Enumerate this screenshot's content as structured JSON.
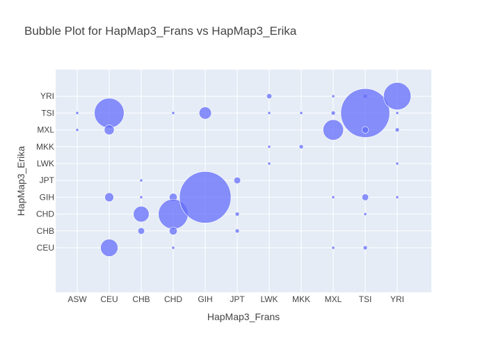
{
  "chart_data": {
    "type": "scatter",
    "title": "Bubble Plot for HapMap3_Frans vs HapMap3_Erika",
    "xlabel": "HapMap3_Frans",
    "ylabel": "HapMap3_Erika",
    "x_categories": [
      "ASW",
      "CEU",
      "CHB",
      "CHD",
      "GIH",
      "JPT",
      "LWK",
      "MKK",
      "MXL",
      "TSI",
      "YRI"
    ],
    "y_categories": [
      "CEU",
      "CHB",
      "CHD",
      "GIH",
      "JPT",
      "LWK",
      "MKK",
      "MXL",
      "TSI",
      "YRI"
    ],
    "grid": true,
    "marker_color": "#636efa",
    "plot_background": "#e5ecf6",
    "points": [
      {
        "x": "ASW",
        "y": "TSI",
        "size": 1
      },
      {
        "x": "ASW",
        "y": "MXL",
        "size": 1
      },
      {
        "x": "CEU",
        "y": "TSI",
        "size": 100
      },
      {
        "x": "CEU",
        "y": "MXL",
        "size": 11
      },
      {
        "x": "CEU",
        "y": "GIH",
        "size": 9
      },
      {
        "x": "CEU",
        "y": "CEU",
        "size": 34
      },
      {
        "x": "CHB",
        "y": "JPT",
        "size": 1
      },
      {
        "x": "CHB",
        "y": "GIH",
        "size": 1
      },
      {
        "x": "CHB",
        "y": "CHD",
        "size": 28
      },
      {
        "x": "CHB",
        "y": "CHB",
        "size": 5
      },
      {
        "x": "CHD",
        "y": "TSI",
        "size": 1
      },
      {
        "x": "CHD",
        "y": "GIH",
        "size": 7
      },
      {
        "x": "CHD",
        "y": "CHD",
        "size": 100
      },
      {
        "x": "CHD",
        "y": "CHB",
        "size": 7
      },
      {
        "x": "CHD",
        "y": "CEU",
        "size": 1
      },
      {
        "x": "GIH",
        "y": "TSI",
        "size": 17
      },
      {
        "x": "GIH",
        "y": "GIH",
        "size": 300
      },
      {
        "x": "JPT",
        "y": "JPT",
        "size": 5
      },
      {
        "x": "JPT",
        "y": "CHD",
        "size": 2
      },
      {
        "x": "JPT",
        "y": "CHB",
        "size": 2
      },
      {
        "x": "LWK",
        "y": "YRI",
        "size": 3
      },
      {
        "x": "LWK",
        "y": "TSI",
        "size": 1
      },
      {
        "x": "LWK",
        "y": "MKK",
        "size": 1
      },
      {
        "x": "LWK",
        "y": "LWK",
        "size": 1
      },
      {
        "x": "MKK",
        "y": "TSI",
        "size": 1
      },
      {
        "x": "MKK",
        "y": "MKK",
        "size": 2
      },
      {
        "x": "MXL",
        "y": "YRI",
        "size": 1
      },
      {
        "x": "MXL",
        "y": "TSI",
        "size": 2
      },
      {
        "x": "MXL",
        "y": "MXL",
        "size": 47
      },
      {
        "x": "MXL",
        "y": "GIH",
        "size": 1
      },
      {
        "x": "MXL",
        "y": "CEU",
        "size": 1
      },
      {
        "x": "TSI",
        "y": "YRI",
        "size": 2
      },
      {
        "x": "TSI",
        "y": "TSI",
        "size": 270
      },
      {
        "x": "TSI",
        "y": "MXL",
        "size": 5
      },
      {
        "x": "TSI",
        "y": "GIH",
        "size": 5
      },
      {
        "x": "TSI",
        "y": "CHD",
        "size": 1
      },
      {
        "x": "TSI",
        "y": "CEU",
        "size": 2
      },
      {
        "x": "YRI",
        "y": "YRI",
        "size": 85
      },
      {
        "x": "YRI",
        "y": "TSI",
        "size": 1
      },
      {
        "x": "YRI",
        "y": "MXL",
        "size": 2
      },
      {
        "x": "YRI",
        "y": "LWK",
        "size": 1
      },
      {
        "x": "YRI",
        "y": "GIH",
        "size": 1
      }
    ]
  }
}
